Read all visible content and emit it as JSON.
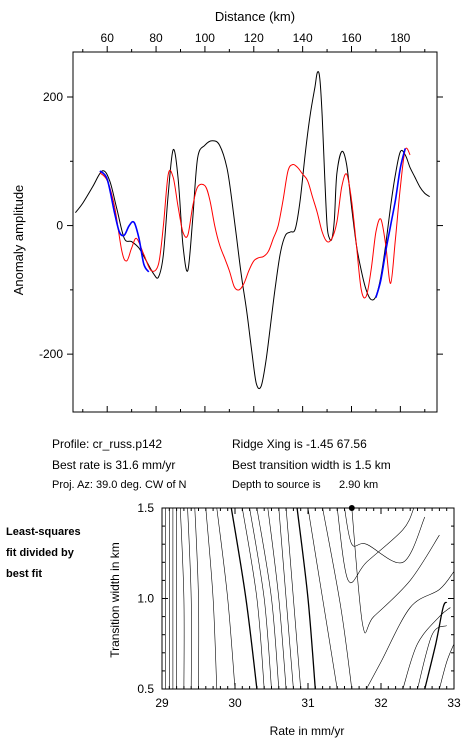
{
  "chart_data": [
    {
      "type": "line",
      "xlabel": "Distance (km)",
      "ylabel": "Anomaly amplitude",
      "xlim": [
        46,
        195
      ],
      "ylim": [
        -290,
        270
      ],
      "xticks": [
        60,
        80,
        100,
        120,
        140,
        160,
        180
      ],
      "yticks": [
        200,
        0,
        -200
      ],
      "series": [
        {
          "color": "#000000",
          "x": [
            47,
            50,
            54,
            58,
            61,
            64,
            67,
            70,
            73,
            76,
            79,
            81,
            83,
            85,
            87,
            89,
            91,
            93,
            95,
            97,
            100,
            103,
            106,
            109,
            111,
            113,
            115,
            117,
            119,
            121,
            123,
            125,
            127,
            129,
            131,
            133,
            135,
            137,
            139,
            141,
            143,
            145,
            146,
            147,
            148,
            149,
            150,
            151,
            152,
            153,
            154,
            156,
            158,
            160,
            162,
            164,
            166,
            168,
            170,
            172,
            174,
            176,
            178,
            180,
            182,
            184,
            186,
            188,
            190,
            192
          ],
          "y": [
            20,
            35,
            60,
            85,
            70,
            25,
            -20,
            -25,
            -35,
            -55,
            -75,
            -80,
            -45,
            50,
            118,
            75,
            -30,
            -70,
            10,
            105,
            125,
            132,
            125,
            90,
            40,
            -20,
            -80,
            -130,
            -190,
            -245,
            -250,
            -210,
            -150,
            -90,
            -40,
            -15,
            -10,
            -5,
            40,
            110,
            170,
            215,
            238,
            230,
            170,
            80,
            0,
            -20,
            -20,
            10,
            80,
            115,
            95,
            30,
            -30,
            -70,
            -100,
            -115,
            -110,
            -80,
            -30,
            30,
            80,
            115,
            110,
            90,
            75,
            60,
            50,
            45
          ]
        },
        {
          "color": "#ff0000",
          "x": [
            57,
            60,
            63,
            66,
            68,
            70,
            72,
            75,
            78,
            81,
            83,
            85,
            87,
            89,
            91,
            93,
            95,
            97,
            100,
            102,
            104,
            106,
            108,
            110,
            112,
            114,
            116,
            118,
            120,
            122,
            124,
            126,
            128,
            130,
            132,
            134,
            136,
            138,
            140,
            142,
            144,
            146,
            148,
            150,
            152,
            154,
            156,
            158,
            160,
            162,
            164,
            166,
            168,
            170,
            172,
            174,
            176,
            178,
            180,
            182,
            184
          ],
          "y": [
            82,
            70,
            30,
            -40,
            -55,
            -35,
            -20,
            -45,
            -70,
            -60,
            0,
            80,
            75,
            30,
            -10,
            -15,
            30,
            60,
            62,
            40,
            0,
            -30,
            -50,
            -70,
            -95,
            -100,
            -90,
            -70,
            -55,
            -50,
            -48,
            -40,
            -20,
            0,
            40,
            85,
            95,
            90,
            80,
            70,
            45,
            20,
            -10,
            -25,
            -20,
            5,
            60,
            80,
            40,
            -30,
            -100,
            -110,
            -70,
            -10,
            10,
            -30,
            -90,
            -20,
            60,
            118,
            110
          ]
        },
        {
          "color": "#0000ff",
          "x": [
            57,
            60,
            63,
            65,
            67,
            69,
            71,
            73,
            75,
            77
          ],
          "y": [
            85,
            72,
            20,
            -10,
            -15,
            0,
            5,
            -20,
            -60,
            -72
          ]
        },
        {
          "color": "#0000ff",
          "x": [
            170,
            172,
            174,
            176,
            178,
            180,
            182
          ],
          "y": [
            -112,
            -85,
            -40,
            0,
            40,
            90,
            120
          ]
        }
      ]
    },
    {
      "type": "contour",
      "xlabel": "Rate in mm/yr",
      "ylabel": "Transition width in km",
      "xlim": [
        29,
        33
      ],
      "ylim": [
        0.5,
        1.5
      ],
      "xticks": [
        29,
        30,
        31,
        32,
        33
      ],
      "yticks": [
        0.5,
        1.0,
        1.5
      ],
      "best_fit_point": [
        31.6,
        1.5
      ],
      "contours": [
        {
          "color": "#000000",
          "x": [
            29.05,
            29.05
          ],
          "y": [
            1.5,
            0.5
          ]
        },
        {
          "color": "#000000",
          "x": [
            29.1,
            29.1
          ],
          "y": [
            1.5,
            0.5
          ]
        },
        {
          "color": "#000000",
          "x": [
            29.15,
            29.15
          ],
          "y": [
            1.5,
            0.5
          ]
        },
        {
          "color": "#000000",
          "x": [
            29.2,
            29.2
          ],
          "y": [
            1.5,
            0.5
          ]
        },
        {
          "color": "#000000",
          "x": [
            29.25,
            29.3,
            29.3
          ],
          "y": [
            1.5,
            1.0,
            0.5
          ]
        },
        {
          "color": "#000000",
          "x": [
            29.35,
            29.4,
            29.4
          ],
          "y": [
            1.5,
            1.0,
            0.5
          ]
        },
        {
          "color": "#000000",
          "x": [
            29.45,
            29.5,
            29.5
          ],
          "y": [
            1.5,
            1.0,
            0.5
          ]
        },
        {
          "color": "#000000",
          "x": [
            29.6,
            29.7,
            29.75
          ],
          "y": [
            1.5,
            1.0,
            0.5
          ]
        },
        {
          "color": "#000000",
          "x": [
            29.75,
            29.9,
            30.0
          ],
          "y": [
            1.5,
            1.0,
            0.5
          ]
        },
        {
          "color": "#000000",
          "x": [
            29.95,
            30.15,
            30.3
          ],
          "y": [
            1.5,
            1.0,
            0.5
          ]
        },
        {
          "color": "#000000",
          "x": [
            30.1,
            30.3,
            30.4
          ],
          "y": [
            1.5,
            1.0,
            0.5
          ]
        },
        {
          "color": "#000000",
          "x": [
            30.2,
            30.4,
            30.5
          ],
          "y": [
            1.5,
            1.0,
            0.5
          ]
        },
        {
          "color": "#000000",
          "x": [
            30.3,
            30.5,
            30.6
          ],
          "y": [
            1.5,
            1.0,
            0.5
          ]
        },
        {
          "color": "#000000",
          "x": [
            30.45,
            30.6,
            30.7
          ],
          "y": [
            1.5,
            1.0,
            0.5
          ]
        },
        {
          "color": "#000000",
          "x": [
            30.6,
            30.7,
            30.8
          ],
          "y": [
            1.5,
            1.0,
            0.5
          ]
        },
        {
          "color": "#000000",
          "x": [
            30.7,
            30.8,
            30.9
          ],
          "y": [
            1.5,
            1.0,
            0.5
          ]
        },
        {
          "color": "#000000",
          "x": [
            30.85,
            31.0,
            31.1
          ],
          "y": [
            1.5,
            1.0,
            0.5
          ]
        },
        {
          "color": "#000000",
          "x": [
            31.0,
            31.2,
            31.4
          ],
          "y": [
            1.5,
            1.0,
            0.5
          ]
        },
        {
          "color": "#000000",
          "x": [
            31.2,
            31.45,
            31.6
          ],
          "y": [
            1.5,
            0.95,
            0.5
          ]
        },
        {
          "color": "#000000",
          "x": [
            31.4,
            31.55,
            31.8,
            32.3,
            32.45
          ],
          "y": [
            1.5,
            1.1,
            1.2,
            1.38,
            1.5
          ]
        },
        {
          "color": "#000000",
          "x": [
            31.5,
            31.6,
            31.8,
            32.3,
            32.6
          ],
          "y": [
            1.5,
            1.3,
            1.3,
            1.2,
            1.45
          ]
        },
        {
          "color": "#000000",
          "x": [
            31.6,
            31.75,
            31.9,
            32.4,
            32.8
          ],
          "y": [
            1.5,
            0.85,
            0.9,
            1.1,
            1.35
          ]
        },
        {
          "color": "#000000",
          "x": [
            31.8,
            32.0,
            32.4,
            32.8,
            33.0
          ],
          "y": [
            0.5,
            0.65,
            0.95,
            1.05,
            1.15
          ]
        },
        {
          "color": "#000000",
          "x": [
            32.3,
            32.5,
            32.8,
            32.95
          ],
          "y": [
            0.5,
            0.75,
            0.9,
            0.95
          ]
        },
        {
          "color": "#000000",
          "x": [
            32.5,
            32.7,
            32.9
          ],
          "y": [
            0.5,
            0.8,
            0.85
          ]
        },
        {
          "color": "#000000",
          "x": [
            32.6,
            32.75,
            32.85,
            32.9
          ],
          "y": [
            0.5,
            0.75,
            0.95,
            0.98
          ]
        },
        {
          "color": "#000000",
          "x": [
            32.8,
            32.9,
            33.0
          ],
          "y": [
            0.5,
            0.65,
            0.75
          ]
        }
      ]
    }
  ],
  "info": {
    "profile": "Profile: cr_russ.p142",
    "best_rate": "Best rate is 31.6 mm/yr",
    "proj_az": "Proj. Az: 39.0 deg. CW of N",
    "ridge_xing": "Ridge Xing is -1.45 67.56",
    "best_width": "Best transition width is 1.5 km",
    "depth_label": "Depth to source is",
    "depth_value": "2.90 km"
  },
  "side_label": [
    "Least-squares",
    "fit divided by",
    "best fit"
  ]
}
